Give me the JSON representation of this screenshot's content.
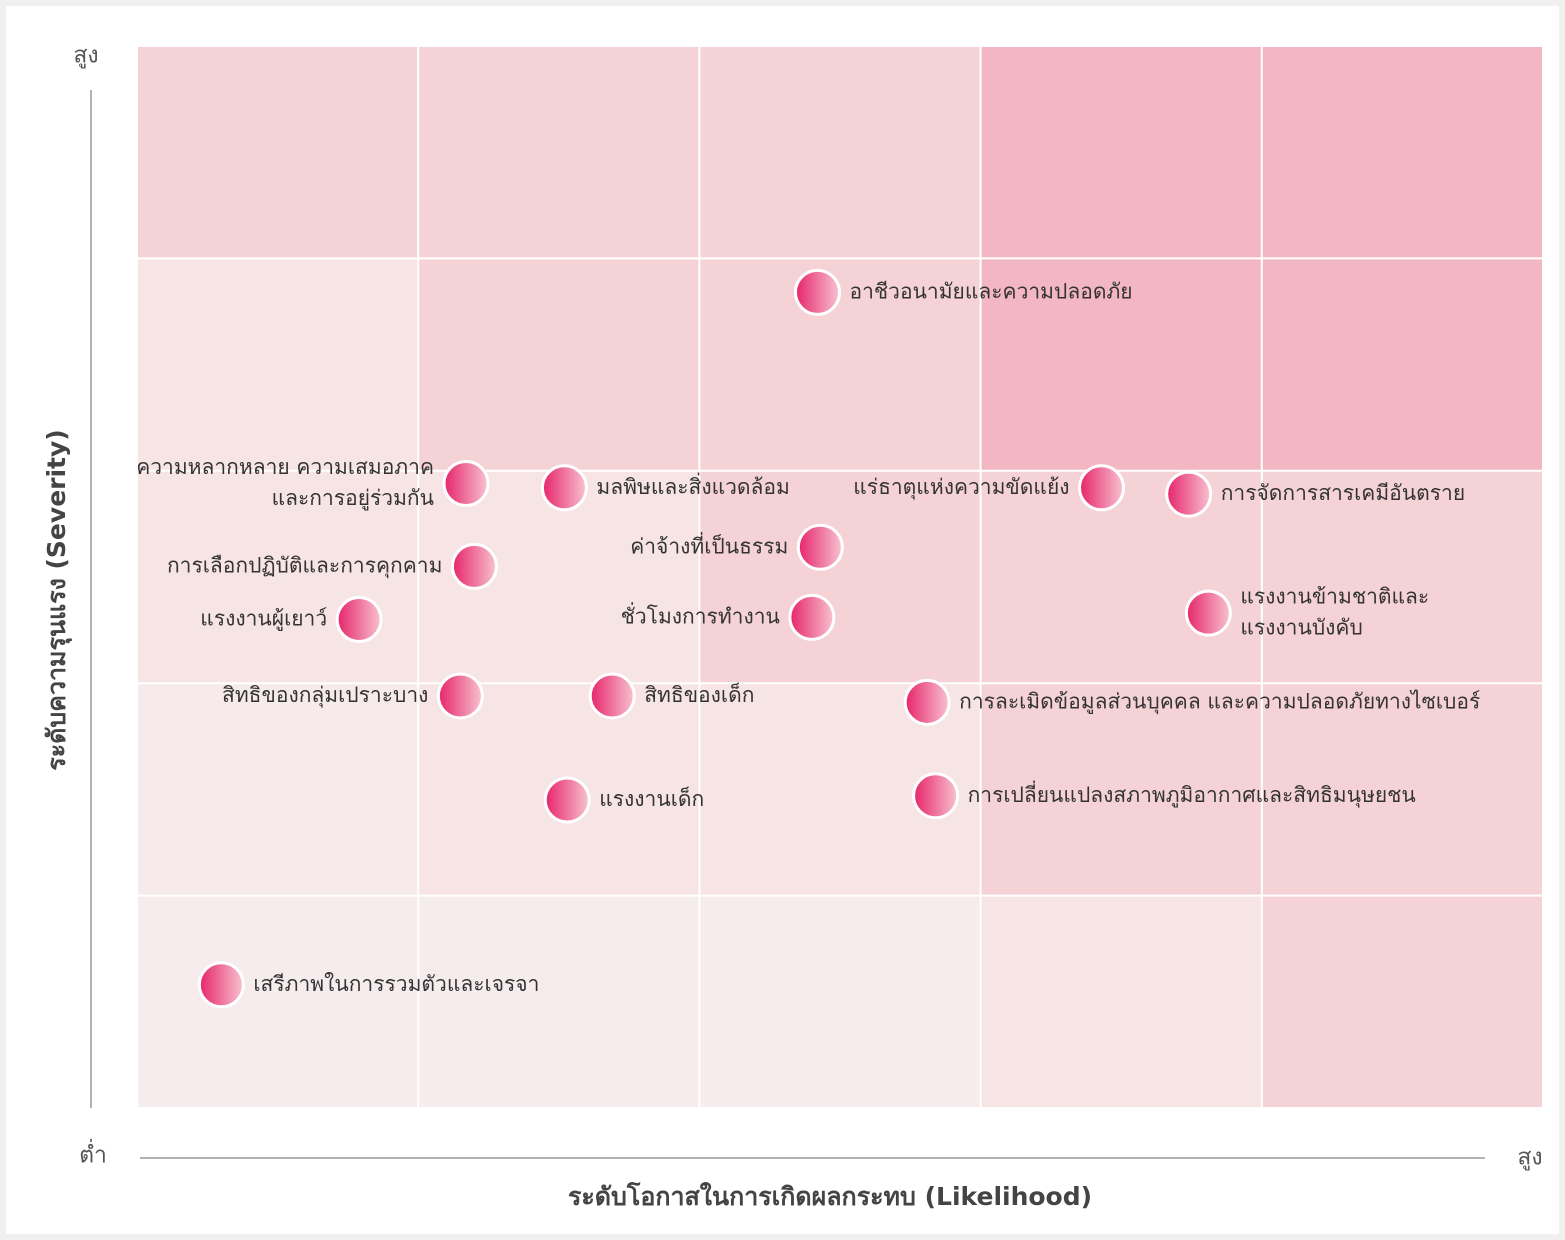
{
  "chart_data": {
    "type": "scatter",
    "x_label": "ระดับโอกาสในการเกิดผลกระทบ  (Likelihood)",
    "y_label": "ระดับความรุนแรง  (Severity)",
    "y_high_label": "สูง",
    "low_label": "ต่ำ",
    "x_high_label": "สูง",
    "xlim": [
      0,
      5
    ],
    "ylim": [
      0,
      5
    ],
    "xticks": [
      0,
      1,
      2,
      3,
      4,
      5
    ],
    "yticks": [
      0,
      1,
      2,
      3,
      4,
      5
    ],
    "grid": true,
    "color": "#e6246a",
    "cell_colors": [
      [
        "#f4d2d6",
        "#f4d2d6",
        "#f4d2d6",
        "#f2b7c2",
        "#f2b7c2"
      ],
      [
        "#f7e4e5",
        "#f4d2d6",
        "#f4d2d6",
        "#f2b7c2",
        "#f2b7c2"
      ],
      [
        "#f7e4e5",
        "#f7e4e5",
        "#f4d2d6",
        "#f4d2d6",
        "#f4d2d6"
      ],
      [
        "#f6eaeb",
        "#f7e4e5",
        "#f7e4e5",
        "#f4d2d6",
        "#f4d2d6"
      ],
      [
        "#f6eced",
        "#f6eced",
        "#f6eced",
        "#f7e4e5",
        "#f4d2d6"
      ]
    ],
    "labels": [
      [
        "อาชีวอนามัยและความปลอดภัย"
      ],
      [
        "ความหลากหลาย ความเสมอภาค",
        "และการอยู่ร่วมกัน"
      ],
      [
        "มลพิษและสิ่งแวดล้อม"
      ],
      [
        "แร่ธาตุแห่งความขัดแย้ง"
      ],
      [
        "การจัดการสารเคมีอันตราย"
      ],
      [
        "ค่าจ้างที่เป็นธรรม"
      ],
      [
        "การเลือกปฏิบัติและการคุกคาม"
      ],
      [
        "แรงงานผู้เยาว์"
      ],
      [
        "ชั่วโมงการทำงาน"
      ],
      [
        "แรงงานข้ามชาติและ",
        "แรงงานบังคับ"
      ],
      [
        "สิทธิของกลุ่มเปราะบาง"
      ],
      [
        "สิทธิของเด็ก"
      ],
      [
        "การละเมิดข้อมูลส่วนบุคคล และความปลอดภัยทางไซเบอร์"
      ],
      [
        "แรงงานเด็ก"
      ],
      [
        "การเปลี่ยนแปลงสภาพภูมิอากาศและสิทธิมนุษยชน"
      ],
      [
        "เสรีภาพในการรวมตัวและเจรจา"
      ]
    ],
    "x": [
      2.42,
      1.17,
      1.52,
      3.43,
      3.74,
      2.43,
      1.2,
      0.79,
      2.4,
      3.81,
      1.15,
      1.69,
      2.81,
      1.53,
      2.84,
      0.3
    ],
    "values": [
      3.84,
      2.94,
      2.92,
      2.92,
      2.89,
      2.64,
      2.55,
      2.3,
      2.31,
      2.33,
      1.94,
      1.94,
      1.91,
      1.45,
      1.47,
      0.58
    ]
  }
}
